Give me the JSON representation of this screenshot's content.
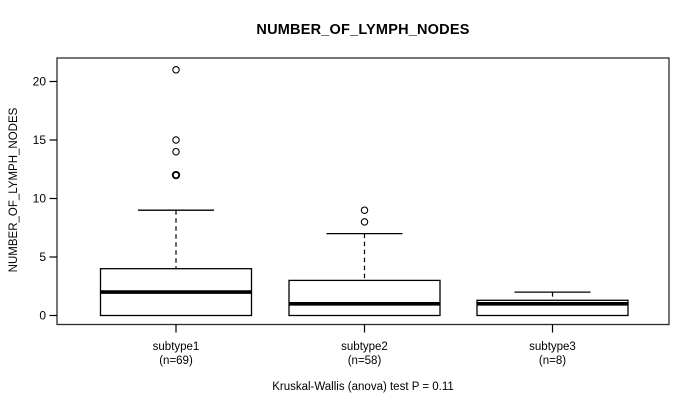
{
  "figure": {
    "background": "#ffffff",
    "foreground": "#000000"
  },
  "chart_data": {
    "type": "boxplot",
    "title": "NUMBER_OF_LYMPH_NODES",
    "ylabel": "NUMBER_OF_LYMPH_NODES",
    "caption": "Kruskal-Wallis (anova) test P = 0.11",
    "ylim": [
      0,
      21.5
    ],
    "yticks": [
      0,
      5,
      10,
      15,
      20
    ],
    "grid": false,
    "legend": "none",
    "categories": [
      "subtype1",
      "subtype2",
      "subtype3"
    ],
    "category_sublabels": [
      "(n=69)",
      "(n=58)",
      "(n=8)"
    ],
    "series": [
      {
        "name": "subtype1",
        "n": 69,
        "whisker_low": 0,
        "q1": 0,
        "median": 2,
        "q3": 4,
        "whisker_high": 9,
        "outliers": [
          12,
          12,
          14,
          15,
          21
        ]
      },
      {
        "name": "subtype2",
        "n": 58,
        "whisker_low": 0,
        "q1": 0,
        "median": 1,
        "q3": 3,
        "whisker_high": 7,
        "outliers": [
          8,
          9
        ]
      },
      {
        "name": "subtype3",
        "n": 8,
        "whisker_low": 0,
        "q1": 0,
        "median": 1,
        "q3": 1.3,
        "whisker_high": 2,
        "outliers": []
      }
    ]
  }
}
